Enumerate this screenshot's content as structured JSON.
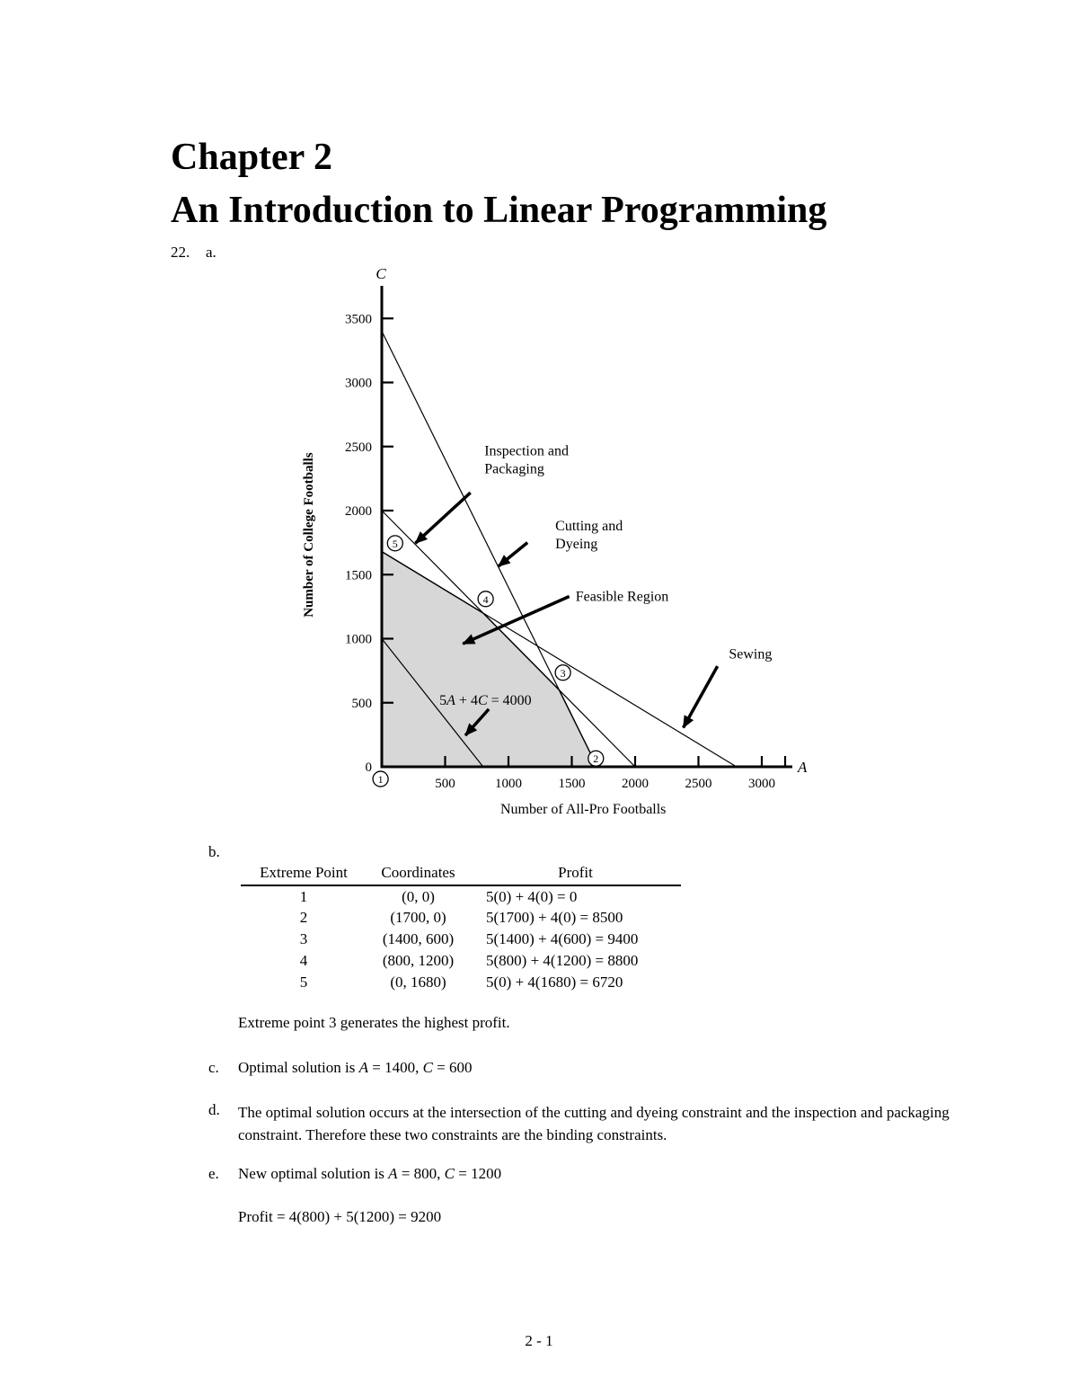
{
  "doc": {
    "title_line1": "Chapter 2",
    "title_line2": "An Introduction to Linear Programming",
    "problem_number": "22.",
    "part_labels": {
      "a": "a.",
      "b": "b.",
      "c": "c.",
      "d": "d.",
      "e": "e."
    },
    "page_number": "2 - 1"
  },
  "chart_data": {
    "type": "line",
    "xlabel": "Number of All-Pro Footballs",
    "ylabel": "Number of College Footballs",
    "x_axis_symbol": "A",
    "y_axis_symbol": "C",
    "xlim": [
      0,
      3230
    ],
    "ylim": [
      0,
      3750
    ],
    "x_ticks": [
      500,
      1000,
      1500,
      2000,
      2500,
      3000
    ],
    "y_ticks": [
      0,
      500,
      1000,
      1500,
      2000,
      2500,
      3000,
      3500
    ],
    "grid": false,
    "constraint_lines": [
      {
        "name": "Cutting and Dyeing",
        "from": [
          0,
          3400
        ],
        "to": [
          1700,
          0
        ]
      },
      {
        "name": "Inspection and Packaging",
        "from": [
          0,
          2000
        ],
        "to": [
          2000,
          0
        ]
      },
      {
        "name": "Sewing",
        "from": [
          0,
          1680
        ],
        "to": [
          2800,
          0
        ]
      },
      {
        "name": "Objective function line",
        "from": [
          0,
          1000
        ],
        "to": [
          800,
          0
        ]
      }
    ],
    "feasible_region_vertices": [
      [
        0,
        0
      ],
      [
        1700,
        0
      ],
      [
        1400,
        600
      ],
      [
        800,
        1200
      ],
      [
        0,
        1680
      ]
    ],
    "extreme_point_markers": [
      {
        "label": "1",
        "pos": [
          -10,
          -95
        ]
      },
      {
        "label": "2",
        "pos": [
          1690,
          65
        ]
      },
      {
        "label": "3",
        "pos": [
          1430,
          735
        ]
      },
      {
        "label": "4",
        "pos": [
          820,
          1310
        ]
      },
      {
        "label": "5",
        "pos": [
          105,
          1745
        ]
      }
    ],
    "annotations": [
      {
        "lines": [
          "Inspection and",
          "Packaging"
        ],
        "text_pos": [
          810,
          2515
        ],
        "arrow_from": [
          700,
          2140
        ],
        "arrow_to": [
          265,
          1745
        ]
      },
      {
        "lines": [
          "Cutting and",
          "Dyeing"
        ],
        "text_pos": [
          1370,
          1930
        ],
        "arrow_from": [
          1150,
          1750
        ],
        "arrow_to": [
          920,
          1565
        ]
      },
      {
        "lines": [
          "Feasible Region"
        ],
        "text_pos": [
          1530,
          1380
        ],
        "arrow_from": [
          1480,
          1330
        ],
        "arrow_to": [
          640,
          960
        ]
      },
      {
        "lines": [
          "Sewing"
        ],
        "text_pos": [
          2740,
          930
        ],
        "arrow_from": [
          2650,
          785
        ],
        "arrow_to": [
          2380,
          305
        ]
      },
      {
        "lines": [
          "5*A* + 4*C* = 4000"
        ],
        "text_pos": [
          455,
          570
        ],
        "arrow_from": [
          845,
          450
        ],
        "arrow_to": [
          660,
          245
        ]
      }
    ]
  },
  "table": {
    "headers": [
      "Extreme Point",
      "Coordinates",
      "Profit"
    ],
    "rows": [
      {
        "point": "1",
        "coordinates": "(0, 0)",
        "profit": "5(0) + 4(0) = 0"
      },
      {
        "point": "2",
        "coordinates": "(1700, 0)",
        "profit": "5(1700) + 4(0) = 8500"
      },
      {
        "point": "3",
        "coordinates": "(1400, 600)",
        "profit": "5(1400) + 4(600) = 9400"
      },
      {
        "point": "4",
        "coordinates": "(800, 1200)",
        "profit": "5(800) + 4(1200) = 8800"
      },
      {
        "point": "5",
        "coordinates": "(0, 1680)",
        "profit": "5(0) + 4(1680) = 6720"
      }
    ],
    "note": "Extreme point 3 generates the highest profit."
  },
  "answers": {
    "c": "Optimal solution is *A* = 1400, *C* = 600",
    "d": "The optimal solution occurs at the intersection of the cutting and dyeing constraint and the inspection and packaging constraint.  Therefore these two constraints are the binding constraints.",
    "e": "New optimal solution is *A* = 800, *C* = 1200",
    "e_profit": "Profit = 4(800) + 5(1200) = 9200"
  }
}
